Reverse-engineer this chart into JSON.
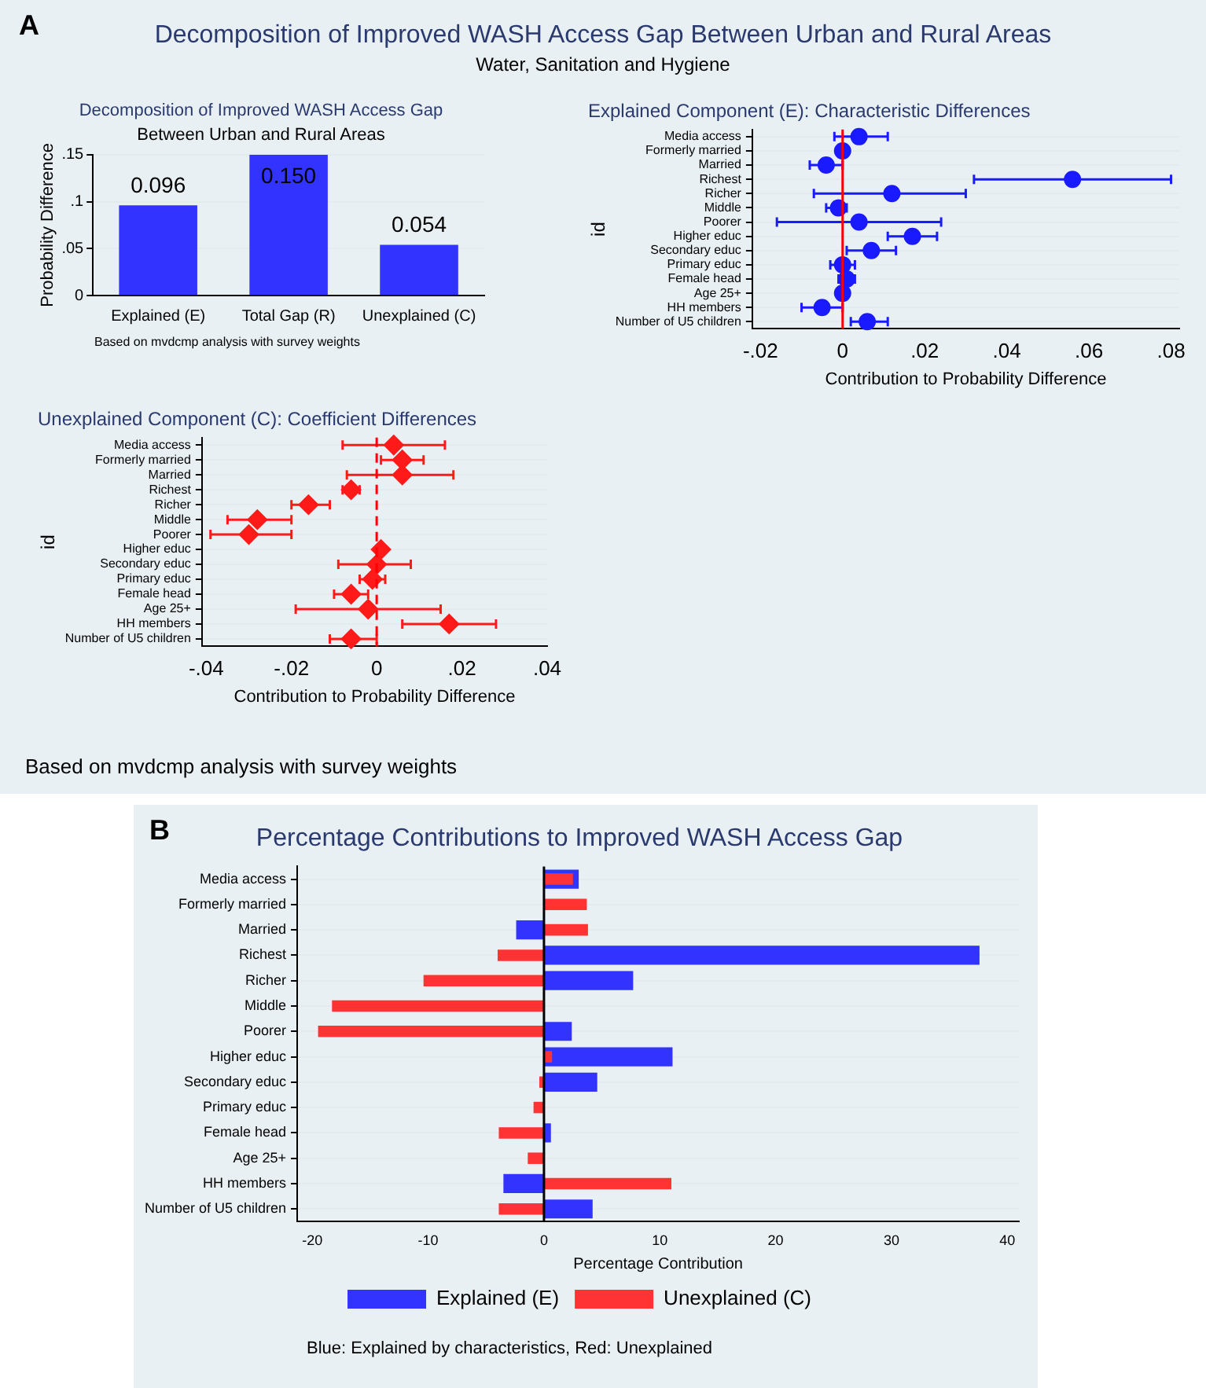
{
  "chart_data": [
    {
      "type": "other",
      "title": "Decomposition of Improved WASH Access Gap Between Urban and Rural Areas",
      "subtitle": "Water, Sanitation and Hygiene",
      "annotations": [
        "A",
        "Based on mvdcmp analysis with survey weights"
      ]
    },
    {
      "type": "bar",
      "title": "Decomposition of Improved WASH Access Gap",
      "subtitle": "Between Urban and Rural Areas",
      "categories": [
        "Explained (E)",
        "Total Gap (R)",
        "Unexplained (C)"
      ],
      "values": [
        0.096,
        0.15,
        0.054
      ],
      "value_labels": [
        "0.096",
        "0.150",
        "0.054"
      ],
      "color": "#3333ff",
      "ylabel": "Probability Difference",
      "ylim": [
        0,
        0.15
      ],
      "yticks": [
        0,
        {
          "value": 0.05,
          "label": ".05"
        },
        {
          "value": 0.1,
          "label": ".1"
        },
        {
          "value": 0.15,
          "label": ".15"
        }
      ],
      "grid": "y",
      "annotations": [
        "Based on mvdcmp analysis with survey weights"
      ]
    },
    {
      "type": "scatter",
      "orientation": "horizontal",
      "title": "Explained Component (E): Characteristic Differences",
      "categories": [
        "Media access",
        "Formerly married",
        "Married",
        "Richest",
        "Richer",
        "Middle",
        "Poorer",
        "Higher educ",
        "Secondary educ",
        "Primary educ",
        "Female head",
        "Age 25+",
        "HH members",
        "Number of U5 children"
      ],
      "values": [
        0.004,
        0.0,
        -0.004,
        0.056,
        0.012,
        -0.001,
        0.004,
        0.017,
        0.007,
        0.0,
        0.001,
        0.0,
        -0.005,
        0.006
      ],
      "errors": [
        [
          -0.002,
          0.011
        ],
        null,
        [
          -0.008,
          0.0
        ],
        [
          0.032,
          0.08
        ],
        [
          -0.007,
          0.03
        ],
        [
          -0.004,
          0.001
        ],
        [
          -0.016,
          0.024
        ],
        [
          0.011,
          0.023
        ],
        [
          0.001,
          0.013
        ],
        [
          -0.003,
          0.003
        ],
        [
          -0.001,
          0.003
        ],
        null,
        [
          -0.01,
          0.0
        ],
        [
          0.002,
          0.011
        ]
      ],
      "color": "#1a1aff",
      "marker": "circle",
      "xlabel": "Contribution to Probability Difference",
      "ylabel": "id",
      "xlim": [
        -0.022,
        0.082
      ],
      "xticks": [
        {
          "value": -0.02,
          "label": "-.02"
        },
        0,
        {
          "value": 0.02,
          "label": ".02"
        },
        {
          "value": 0.04,
          "label": ".04"
        },
        {
          "value": 0.06,
          "label": ".06"
        },
        {
          "value": 0.08,
          "label": ".08"
        }
      ],
      "grid": "y",
      "ref_lines": [
        {
          "axis": "x",
          "value": 0,
          "color": "#ff0000",
          "line_style": "solid"
        }
      ]
    },
    {
      "type": "scatter",
      "orientation": "horizontal",
      "title": "Unexplained Component (C): Coefficient Differences",
      "categories": [
        "Media access",
        "Formerly married",
        "Married",
        "Richest",
        "Richer",
        "Middle",
        "Poorer",
        "Higher educ",
        "Secondary educ",
        "Primary educ",
        "Female head",
        "Age 25+",
        "HH members",
        "Number of U5 children"
      ],
      "values": [
        0.004,
        0.006,
        0.006,
        -0.006,
        -0.016,
        -0.028,
        -0.03,
        0.001,
        0.0,
        -0.001,
        -0.006,
        -0.002,
        0.017,
        -0.006
      ],
      "errors": [
        [
          -0.008,
          0.016
        ],
        [
          0.001,
          0.011
        ],
        [
          -0.007,
          0.018
        ],
        [
          -0.008,
          -0.004
        ],
        [
          -0.02,
          -0.011
        ],
        [
          -0.035,
          -0.02
        ],
        [
          -0.039,
          -0.02
        ],
        [
          0.001,
          0.002
        ],
        [
          -0.009,
          0.008
        ],
        [
          -0.004,
          0.002
        ],
        [
          -0.01,
          -0.002
        ],
        [
          -0.019,
          0.015
        ],
        [
          0.006,
          0.028
        ],
        [
          -0.011,
          0.0
        ]
      ],
      "color": "#ff1a1a",
      "marker": "diamond",
      "xlabel": "Contribution to Probability Difference",
      "ylabel": "id",
      "xlim": [
        -0.041,
        0.04
      ],
      "xticks": [
        {
          "value": -0.04,
          "label": "-.04"
        },
        {
          "value": -0.02,
          "label": "-.02"
        },
        0,
        {
          "value": 0.02,
          "label": ".02"
        },
        {
          "value": 0.04,
          "label": ".04"
        }
      ],
      "grid": "y",
      "ref_lines": [
        {
          "axis": "x",
          "value": 0,
          "color": "#ff0000",
          "line_style": "dashed"
        }
      ]
    },
    {
      "type": "bar",
      "orientation": "horizontal",
      "title": "Percentage Contributions to Improved WASH Access Gap",
      "categories": [
        "Media access",
        "Formerly married",
        "Married",
        "Richest",
        "Richer",
        "Middle",
        "Poorer",
        "Higher educ",
        "Secondary educ",
        "Primary educ",
        "Female head",
        "Age 25+",
        "HH members",
        "Number of U5 children"
      ],
      "series": [
        {
          "name": "Explained (E)",
          "color": "#3333ff",
          "values": [
            3.0,
            null,
            -2.4,
            37.6,
            7.7,
            null,
            2.4,
            11.1,
            4.6,
            null,
            0.6,
            null,
            -3.5,
            4.2
          ]
        },
        {
          "name": "Unexplained (C)",
          "color": "#ff3333",
          "values": [
            2.5,
            3.7,
            3.8,
            -4.0,
            -10.4,
            -18.3,
            -19.5,
            0.7,
            -0.4,
            -0.9,
            -3.9,
            -1.4,
            11.0,
            -3.9
          ]
        }
      ],
      "xlabel": "Percentage Contribution",
      "xlim": [
        -21.3,
        41
      ],
      "xticks": [
        -20,
        -10,
        0,
        10,
        20,
        30,
        40
      ],
      "grid": "y",
      "legend": "bottom",
      "ref_lines": [
        {
          "axis": "x",
          "value": 0,
          "color": "#000000",
          "line_style": "solid"
        }
      ],
      "annotations": [
        "B",
        "Blue: Explained by characteristics, Red: Unexplained"
      ]
    }
  ]
}
